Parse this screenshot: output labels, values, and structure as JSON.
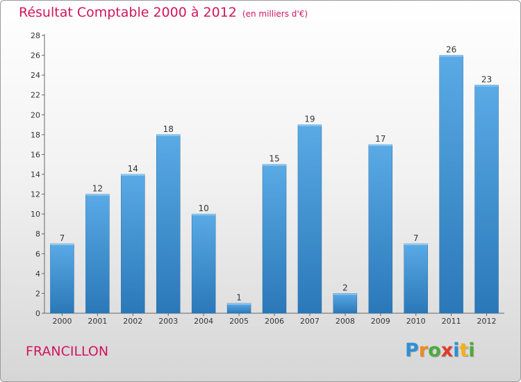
{
  "chart_data": {
    "type": "bar",
    "title": "Résultat Comptable 2000 à 2012",
    "subtitle": "(en milliers d'€)",
    "categories": [
      "2000",
      "2001",
      "2002",
      "2003",
      "2004",
      "2005",
      "2006",
      "2007",
      "2008",
      "2009",
      "2010",
      "2011",
      "2012"
    ],
    "values": [
      7,
      12,
      14,
      18,
      10,
      1,
      15,
      19,
      2,
      17,
      7,
      26,
      23
    ],
    "ylim": [
      0,
      28
    ],
    "yticks": [
      0,
      2,
      4,
      6,
      8,
      10,
      12,
      14,
      16,
      18,
      20,
      22,
      24,
      26,
      28
    ],
    "xlabel": "",
    "ylabel": "",
    "grid": false,
    "bar_color": "#3f93d6",
    "bar_color_light": "#5aaae6",
    "bar_color_dark": "#2a78b8"
  },
  "place_name": "FRANCILLON",
  "logo": {
    "letters": [
      "P",
      "r",
      "o",
      "x",
      "i",
      "t",
      "i"
    ],
    "colors": [
      "#2e8fd6",
      "#f08a1c",
      "#4caa3c",
      "#e23a2a",
      "#2e8fd6",
      "#f2b21a",
      "#4caa3c"
    ]
  }
}
